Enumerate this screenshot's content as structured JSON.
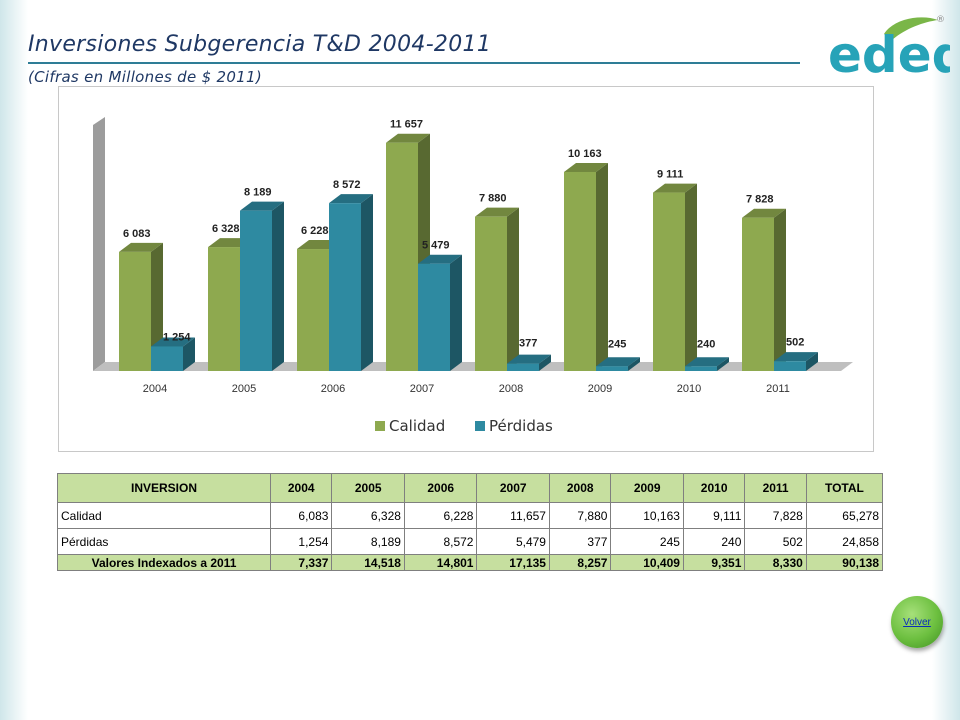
{
  "header": {
    "title": "Inversiones Subgerencia T&D 2004-2011",
    "subtitle": "(Cifras en Millones de $ 2011)",
    "logo_text": "edeq",
    "logo_mark": "®"
  },
  "colors": {
    "calidad": "#8ea94f",
    "perdidas": "#2e8aa1",
    "title": "#1f3864",
    "table_header_bg": "#c6df9f"
  },
  "chart_data": {
    "type": "bar",
    "title": "",
    "xlabel": "",
    "ylabel": "",
    "categories": [
      "2004",
      "2005",
      "2006",
      "2007",
      "2008",
      "2009",
      "2010",
      "2011"
    ],
    "series": [
      {
        "name": "Calidad",
        "values": [
          6083,
          6328,
          6228,
          11657,
          7880,
          10163,
          9111,
          7828
        ],
        "labels": [
          "6 083",
          "6 328",
          "6 228",
          "11 657",
          "7 880",
          "10 163",
          "9 111",
          "7 828"
        ]
      },
      {
        "name": "Pérdidas",
        "values": [
          1254,
          8189,
          8572,
          5479,
          377,
          245,
          240,
          502
        ],
        "labels": [
          "1 254",
          "8 189",
          "8 572",
          "5 479",
          "377",
          "245",
          "240",
          "502"
        ]
      }
    ],
    "ylim": [
      0,
      12000
    ],
    "grid": false,
    "legend": "bottom",
    "style": "3d"
  },
  "table": {
    "headers": [
      "INVERSION",
      "2004",
      "2005",
      "2006",
      "2007",
      "2008",
      "2009",
      "2010",
      "2011",
      "TOTAL"
    ],
    "rows": [
      [
        "Calidad",
        "6,083",
        "6,328",
        "6,228",
        "11,657",
        "7,880",
        "10,163",
        "9,111",
        "7,828",
        "65,278"
      ],
      [
        "Pérdidas",
        "1,254",
        "8,189",
        "8,572",
        "5,479",
        "377",
        "245",
        "240",
        "502",
        "24,858"
      ]
    ],
    "total_row": [
      "Valores Indexados a 2011",
      "7,337",
      "14,518",
      "14,801",
      "17,135",
      "8,257",
      "10,409",
      "9,351",
      "8,330",
      "90,138"
    ]
  },
  "volver_label": "Volver"
}
